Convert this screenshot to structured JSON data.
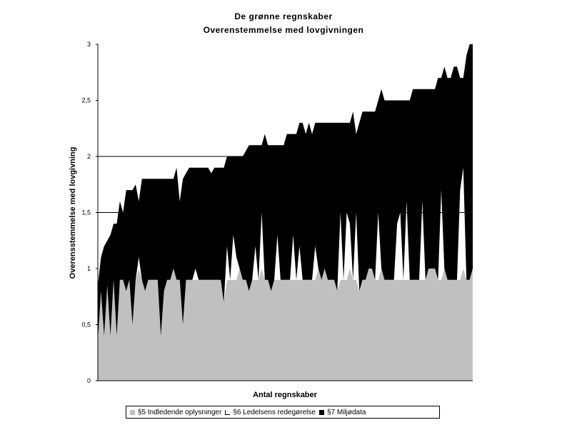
{
  "chart_data": {
    "type": "area",
    "title": "De grønne regnskaber",
    "subtitle": "Overenstemmelse med lovgivningen",
    "xlabel": "Antal regnskaber",
    "ylabel": "Overensstemmelse med lovgivning",
    "ylim": [
      0,
      3
    ],
    "yticks": [
      0,
      0.5,
      1,
      1.5,
      2,
      2.5,
      3
    ],
    "ytick_labels": [
      "0",
      "0,5",
      "1",
      "1,5",
      "2",
      "2,5",
      "3"
    ],
    "stacked": true,
    "grid": {
      "horizontal_lines": [
        1.5,
        2
      ]
    },
    "legend_position": "bottom",
    "x": [
      1,
      2,
      3,
      4,
      5,
      6,
      7,
      8,
      9,
      10,
      11,
      12,
      13,
      14,
      15,
      16,
      17,
      18,
      19,
      20,
      21,
      22,
      23,
      24,
      25,
      26,
      27,
      28,
      29,
      30,
      31,
      32,
      33,
      34,
      35,
      36,
      37,
      38,
      39,
      40,
      41,
      42,
      43,
      44,
      45,
      46,
      47,
      48,
      49,
      50,
      51,
      52,
      53,
      54,
      55,
      56,
      57,
      58,
      59,
      60,
      61,
      62,
      63,
      64,
      65,
      66,
      67,
      68,
      69,
      70,
      71,
      72,
      73,
      74,
      75,
      76,
      77,
      78,
      79,
      80,
      81,
      82,
      83,
      84,
      85,
      86,
      87,
      88,
      89,
      90,
      91,
      92,
      93,
      94,
      95,
      96,
      97,
      98,
      99,
      100,
      101,
      102,
      103,
      104,
      105,
      106,
      107,
      108,
      109,
      110,
      111,
      112,
      113,
      114,
      115,
      116,
      117,
      118,
      119,
      120
    ],
    "series": [
      {
        "name": "§5 Indledende oplysninger",
        "color": "#c0c0c0",
        "values": [
          0.35,
          0.8,
          0.4,
          0.85,
          0.4,
          0.9,
          0.4,
          0.9,
          0.9,
          0.8,
          0.9,
          0.5,
          0.9,
          1.0,
          0.9,
          0.8,
          0.9,
          0.9,
          0.9,
          0.9,
          0.4,
          0.8,
          0.9,
          0.9,
          1.0,
          0.9,
          0.9,
          0.5,
          0.9,
          0.9,
          0.9,
          0.9,
          0.9,
          0.9,
          0.9,
          0.9,
          0.9,
          0.9,
          0.9,
          0.9,
          0.7,
          0.9,
          0.9,
          0.9,
          0.9,
          1.0,
          0.9,
          0.9,
          0.8,
          0.9,
          0.9,
          0.9,
          1.0,
          0.9,
          0.9,
          0.8,
          0.9,
          0.9,
          0.9,
          0.9,
          0.9,
          0.9,
          0.9,
          0.9,
          0.9,
          0.9,
          0.9,
          0.9,
          0.9,
          0.9,
          1.0,
          0.9,
          1.0,
          0.9,
          0.9,
          0.9,
          0.8,
          0.9,
          0.9,
          0.9,
          1.0,
          0.9,
          0.9,
          0.8,
          0.9,
          0.9,
          1.0,
          1.0,
          0.9,
          0.9,
          1.0,
          0.9,
          0.9,
          0.9,
          0.9,
          0.9,
          0.9,
          0.9,
          0.9,
          0.9,
          0.9,
          0.9,
          0.9,
          0.9,
          0.9,
          1.0,
          1.0,
          1.0,
          0.9,
          0.9,
          1.0,
          0.9,
          0.9,
          0.9,
          0.9,
          0.9,
          1.0,
          0.9,
          0.9,
          1.0
        ]
      },
      {
        "name": "§6 Ledelsens redegørelse",
        "color": "#ffffff",
        "values": [
          0,
          0,
          0,
          0,
          0,
          0,
          0,
          0,
          0,
          0,
          0,
          0,
          0,
          0.1,
          0,
          0,
          0,
          0,
          0,
          0,
          0,
          0,
          0,
          0,
          0,
          0,
          0,
          0,
          0,
          0,
          0,
          0.1,
          0,
          0,
          0,
          0,
          0,
          0,
          0,
          0,
          0,
          0.3,
          0,
          0.4,
          0.2,
          0,
          0,
          0,
          0,
          0,
          0.3,
          0,
          0.5,
          0,
          0,
          0,
          0,
          0.4,
          0,
          0,
          0,
          0,
          0.4,
          0,
          0.3,
          0,
          0,
          0,
          0,
          0.3,
          0,
          0,
          0,
          0,
          0,
          0,
          0,
          0.6,
          0,
          0.6,
          0.4,
          0,
          0.6,
          0,
          0,
          0,
          0,
          0,
          0,
          0.6,
          0,
          0,
          0,
          0,
          0,
          0.5,
          0.6,
          0,
          0.7,
          0,
          0,
          0,
          0,
          0.7,
          0,
          0,
          0,
          0,
          0,
          0.8,
          0,
          0,
          0,
          0,
          0,
          0.8,
          0.9,
          0,
          0,
          0
        ]
      },
      {
        "name": "§7 Miljødata",
        "color": "#000000",
        "values": [
          0.5,
          0.3,
          0.8,
          0.4,
          0.9,
          0.5,
          1.0,
          0.7,
          0.6,
          0.9,
          0.8,
          1.2,
          0.85,
          0.5,
          0.9,
          1.0,
          0.9,
          0.9,
          0.9,
          0.9,
          1.4,
          1.0,
          0.9,
          0.9,
          0.8,
          1.0,
          0.7,
          1.3,
          0.95,
          1.0,
          1.0,
          0.9,
          1.0,
          1.0,
          1.0,
          1.0,
          0.95,
          1.0,
          1.0,
          1.0,
          1.2,
          0.8,
          1.1,
          0.7,
          0.9,
          1.0,
          1.1,
          1.15,
          1.3,
          1.2,
          0.9,
          1.2,
          0.6,
          1.3,
          1.2,
          1.3,
          1.2,
          0.8,
          1.2,
          1.2,
          1.3,
          1.3,
          0.9,
          1.3,
          1.1,
          1.4,
          1.3,
          1.4,
          1.3,
          1.1,
          1.3,
          1.4,
          1.3,
          1.4,
          1.4,
          1.4,
          1.5,
          0.8,
          1.4,
          0.8,
          0.9,
          1.5,
          0.7,
          1.5,
          1.5,
          1.5,
          1.4,
          1.4,
          1.5,
          1.0,
          1.6,
          1.6,
          1.6,
          1.6,
          1.6,
          1.1,
          1.0,
          1.6,
          0.9,
          1.6,
          1.7,
          1.7,
          1.7,
          1.0,
          1.7,
          1.6,
          1.6,
          1.6,
          1.8,
          1.0,
          1.8,
          1.8,
          1.8,
          1.9,
          1.9,
          1.0,
          0.8,
          2.0,
          2.1,
          2.0
        ]
      }
    ]
  }
}
